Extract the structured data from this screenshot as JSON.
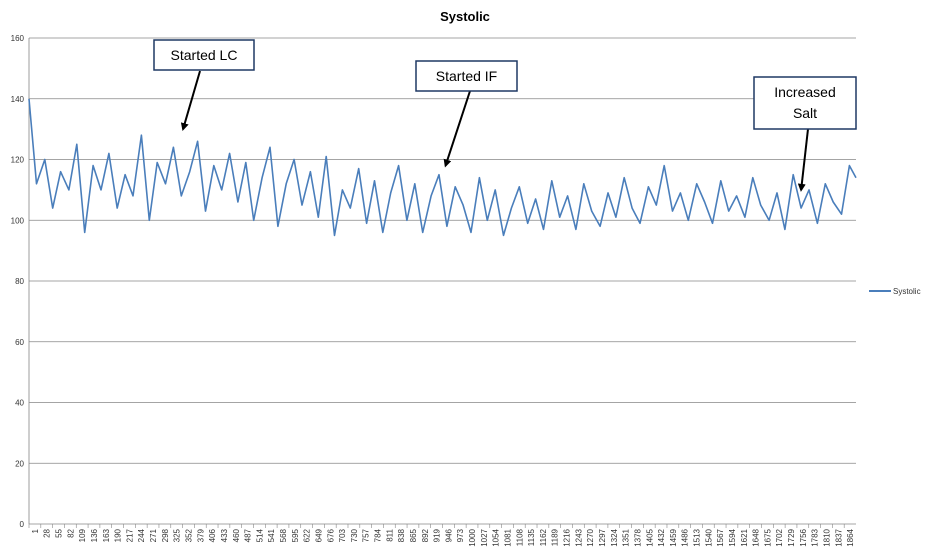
{
  "chart_data": {
    "type": "line",
    "title": "Systolic",
    "xlabel": "",
    "ylabel": "",
    "ylim": [
      0,
      160
    ],
    "yticks": [
      0,
      20,
      40,
      60,
      80,
      100,
      120,
      140,
      160
    ],
    "xlim": [
      1,
      1885
    ],
    "xtick_labels": [
      "1",
      "28",
      "55",
      "82",
      "109",
      "136",
      "163",
      "190",
      "217",
      "244",
      "271",
      "298",
      "325",
      "352",
      "379",
      "406",
      "433",
      "460",
      "487",
      "514",
      "541",
      "568",
      "595",
      "622",
      "649",
      "676",
      "703",
      "730",
      "757",
      "784",
      "811",
      "838",
      "865",
      "892",
      "919",
      "946",
      "973",
      "1000",
      "1027",
      "1054",
      "1081",
      "1108",
      "1135",
      "1162",
      "1189",
      "1216",
      "1243",
      "1270",
      "1297",
      "1324",
      "1351",
      "1378",
      "1405",
      "1432",
      "1459",
      "1486",
      "1513",
      "1540",
      "1567",
      "1594",
      "1621",
      "1648",
      "1675",
      "1702",
      "1729",
      "1756",
      "1783",
      "1810",
      "1837",
      "1864"
    ],
    "grid": true,
    "legend_position": "right",
    "line_color": "#4a7ebb",
    "series": [
      {
        "name": "Systolic",
        "x": [
          1,
          18,
          37,
          55,
          73,
          92,
          110,
          128,
          147,
          165,
          183,
          202,
          220,
          238,
          257,
          275,
          293,
          312,
          330,
          348,
          367,
          385,
          403,
          422,
          440,
          458,
          477,
          495,
          513,
          532,
          550,
          568,
          587,
          605,
          623,
          642,
          660,
          678,
          697,
          715,
          733,
          752,
          770,
          788,
          807,
          825,
          843,
          862,
          880,
          898,
          917,
          935,
          953,
          972,
          990,
          1008,
          1027,
          1045,
          1063,
          1082,
          1100,
          1118,
          1137,
          1155,
          1173,
          1192,
          1210,
          1228,
          1247,
          1265,
          1283,
          1302,
          1320,
          1338,
          1357,
          1375,
          1393,
          1412,
          1430,
          1448,
          1467,
          1485,
          1503,
          1522,
          1540,
          1558,
          1577,
          1595,
          1613,
          1632,
          1650,
          1668,
          1687,
          1705,
          1723,
          1742,
          1760,
          1778,
          1797,
          1815,
          1833,
          1852,
          1870,
          1885
        ],
        "values": [
          140,
          112,
          120,
          104,
          116,
          110,
          125,
          96,
          118,
          110,
          122,
          104,
          115,
          108,
          128,
          100,
          119,
          112,
          124,
          108,
          116,
          126,
          103,
          118,
          110,
          122,
          106,
          119,
          100,
          114,
          124,
          98,
          112,
          120,
          105,
          116,
          101,
          121,
          95,
          110,
          104,
          117,
          99,
          113,
          96,
          109,
          118,
          100,
          112,
          96,
          108,
          115,
          98,
          111,
          105,
          96,
          114,
          100,
          110,
          95,
          104,
          111,
          99,
          107,
          97,
          113,
          101,
          108,
          97,
          112,
          103,
          98,
          109,
          101,
          114,
          104,
          99,
          111,
          105,
          118,
          103,
          109,
          100,
          112,
          106,
          99,
          113,
          103,
          108,
          101,
          114,
          105,
          100,
          109,
          97,
          115,
          104,
          110,
          99,
          112,
          106,
          102,
          118,
          114
        ]
      }
    ],
    "annotations": [
      {
        "text": "Started LC",
        "points_to_x": 352,
        "points_to_y": 130
      },
      {
        "text": "Started IF",
        "points_to_x": 950,
        "points_to_y": 118
      },
      {
        "text": "Increased Salt",
        "points_to_x": 1760,
        "points_to_y": 110
      }
    ]
  }
}
